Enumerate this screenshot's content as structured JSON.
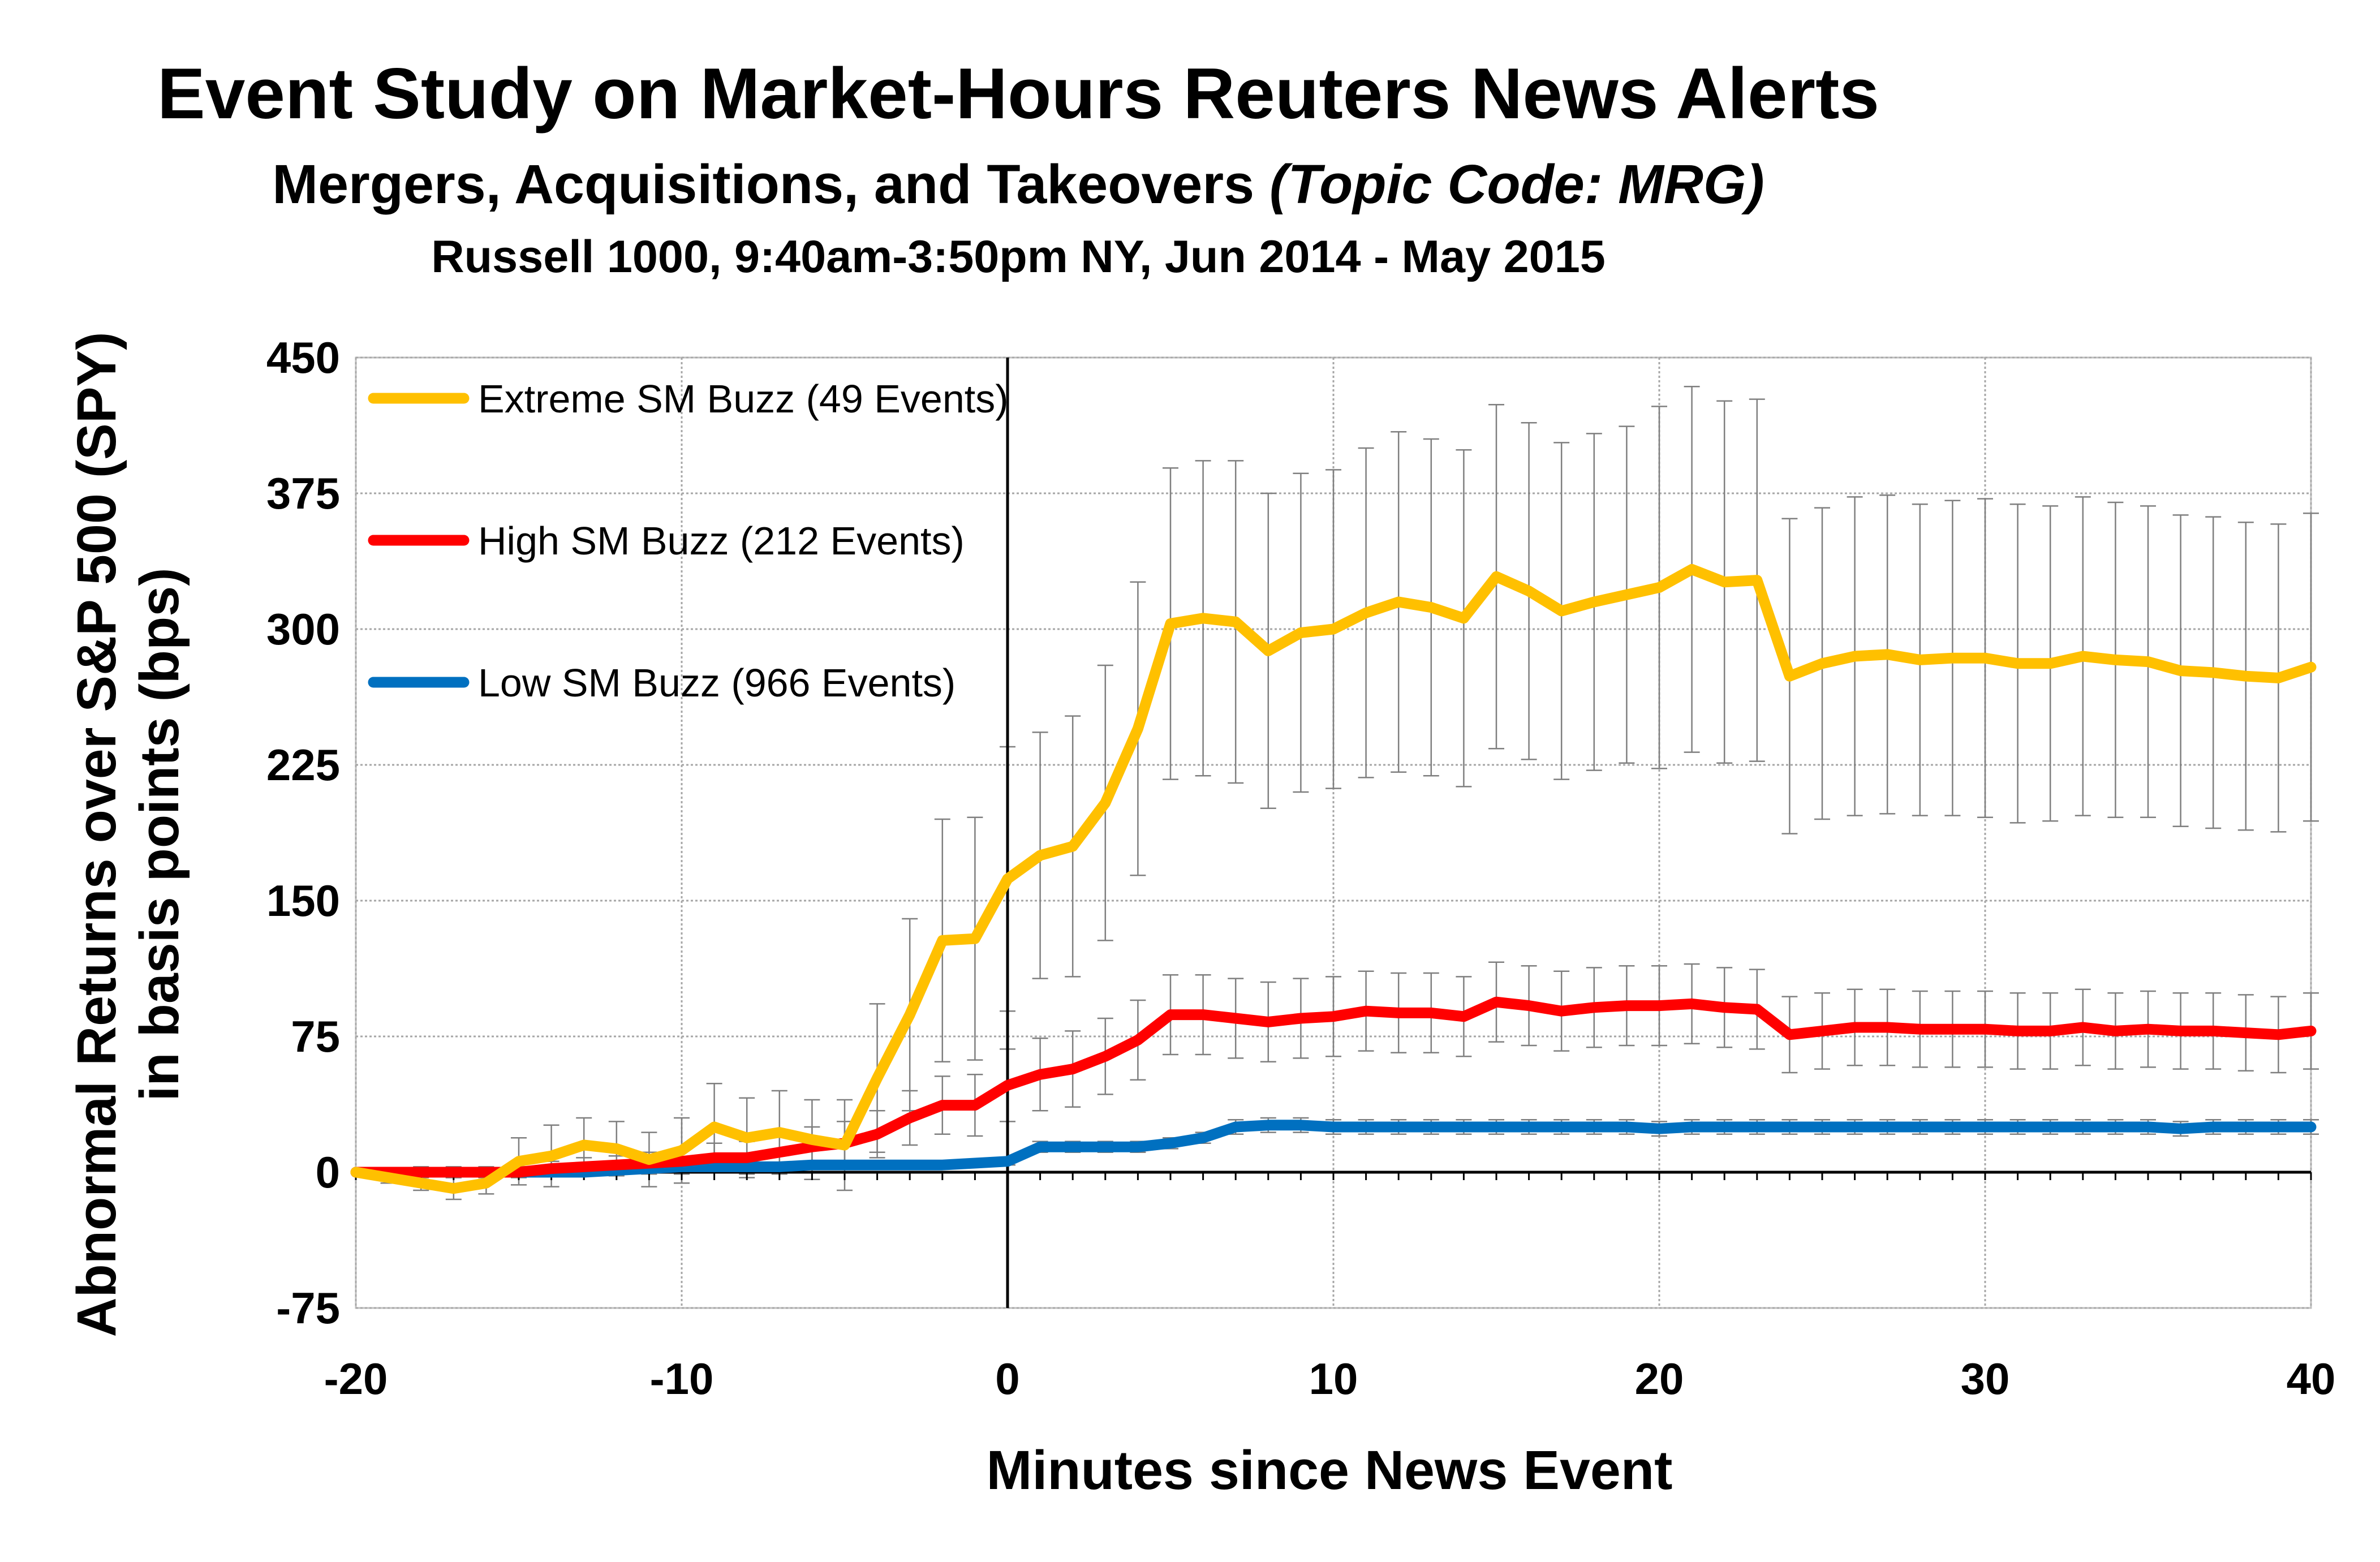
{
  "chart_data": {
    "type": "line",
    "title": "Event Study on Market-Hours Reuters News Alerts",
    "subtitle": {
      "main": "Mergers, Acquisitions, and Takeovers ",
      "italic": "(Topic Code:  MRG)"
    },
    "subtitle2": "Russell 1000, 9:40am-3:50pm NY, Jun 2014 - May 2015",
    "xlabel": "Minutes since News Event",
    "ylabel": [
      "Abnormal Returns over S&P 500 (SPY)",
      "in basis points (bps)"
    ],
    "xlim": [
      -20,
      40
    ],
    "ylim": [
      -75,
      450
    ],
    "xticks": [
      -20,
      -10,
      0,
      10,
      20,
      30,
      40
    ],
    "yticks": [
      -75,
      0,
      75,
      150,
      225,
      300,
      375,
      450
    ],
    "grid": true,
    "legend": "top-left",
    "event_line_x": 0,
    "x": [
      -20,
      -19,
      -18,
      -17,
      -16,
      -15,
      -14,
      -13,
      -12,
      -11,
      -10,
      -9,
      -8,
      -7,
      -6,
      -5,
      -4,
      -3,
      -2,
      -1,
      0,
      1,
      2,
      3,
      4,
      5,
      6,
      7,
      8,
      9,
      10,
      11,
      12,
      13,
      14,
      15,
      16,
      17,
      18,
      19,
      20,
      21,
      22,
      23,
      24,
      25,
      26,
      27,
      28,
      29,
      30,
      31,
      32,
      33,
      34,
      35,
      36,
      37,
      38,
      39,
      40
    ],
    "series": [
      {
        "name": "Extreme SM Buzz (49 Events)",
        "color": "#FFC000",
        "values": [
          0,
          -3,
          -6,
          -9,
          -6,
          6,
          9,
          15,
          13,
          7,
          12,
          25,
          19,
          22,
          18,
          15,
          52,
          87,
          128,
          129,
          162,
          175,
          180,
          204,
          245,
          303,
          306,
          304,
          288,
          298,
          300,
          309,
          315,
          312,
          306,
          329,
          321,
          310,
          315,
          319,
          323,
          333,
          326,
          327,
          274,
          281,
          285,
          286,
          283,
          284,
          284,
          281,
          281,
          285,
          283,
          282,
          277,
          276,
          274,
          273,
          279
        ],
        "err": [
          0,
          3,
          4,
          6,
          6,
          13,
          17,
          15,
          15,
          15,
          18,
          24,
          22,
          23,
          22,
          25,
          41,
          53,
          67,
          67,
          73,
          68,
          72,
          76,
          81,
          86,
          87,
          89,
          87,
          88,
          88,
          91,
          94,
          93,
          93,
          95,
          93,
          93,
          93,
          93,
          100,
          101,
          100,
          100,
          87,
          86,
          88,
          88,
          86,
          87,
          88,
          88,
          87,
          88,
          87,
          86,
          86,
          86,
          85,
          85,
          85
        ]
      },
      {
        "name": "High SM Buzz (212 Events)",
        "color": "#FF0000",
        "values": [
          0,
          0,
          0,
          0,
          0,
          0,
          2,
          3,
          4,
          5,
          6,
          8,
          8,
          11,
          14,
          16,
          21,
          30,
          37,
          37,
          48,
          54,
          57,
          64,
          73,
          87,
          87,
          85,
          83,
          85,
          86,
          89,
          88,
          88,
          86,
          94,
          92,
          89,
          91,
          92,
          92,
          93,
          91,
          90,
          76,
          78,
          80,
          80,
          79,
          79,
          79,
          78,
          78,
          80,
          78,
          79,
          78,
          78,
          77,
          76,
          78
        ],
        "err": [
          0,
          2,
          3,
          3,
          3,
          3,
          4,
          5,
          5,
          6,
          7,
          8,
          9,
          10,
          11,
          12,
          13,
          15,
          16,
          17,
          20,
          20,
          21,
          21,
          22,
          22,
          22,
          22,
          22,
          22,
          22,
          22,
          22,
          22,
          22,
          22,
          22,
          22,
          22,
          22,
          22,
          22,
          22,
          22,
          21,
          21,
          21,
          21,
          21,
          21,
          21,
          21,
          21,
          21,
          21,
          21,
          21,
          21,
          21,
          21,
          21
        ]
      },
      {
        "name": "Low SM Buzz (966 Events)",
        "color": "#0070C0",
        "values": [
          0,
          0,
          0,
          0,
          0,
          0,
          0,
          0,
          1,
          2,
          3,
          3,
          3,
          3,
          4,
          4,
          4,
          4,
          4,
          5,
          6,
          14,
          14,
          14,
          14,
          16,
          19,
          25,
          26,
          26,
          25,
          25,
          25,
          25,
          25,
          25,
          25,
          25,
          25,
          25,
          24,
          25,
          25,
          25,
          25,
          25,
          25,
          25,
          25,
          25,
          25,
          25,
          25,
          25,
          25,
          25,
          24,
          25,
          25,
          25,
          25
        ],
        "err": [
          0,
          1,
          1,
          1,
          1,
          1,
          1,
          1,
          1,
          1,
          1,
          1,
          1,
          1,
          1,
          1,
          1,
          1,
          1,
          2,
          2,
          3,
          3,
          3,
          3,
          3,
          3,
          4,
          4,
          4,
          4,
          4,
          4,
          4,
          4,
          4,
          4,
          4,
          4,
          4,
          4,
          4,
          4,
          4,
          4,
          4,
          4,
          4,
          4,
          4,
          4,
          4,
          4,
          4,
          4,
          4,
          4,
          4,
          4,
          4,
          4
        ]
      }
    ]
  }
}
